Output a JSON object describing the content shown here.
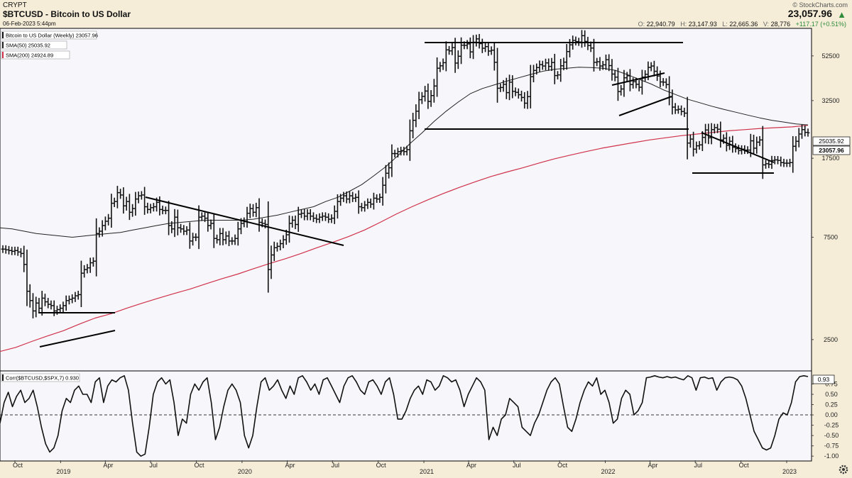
{
  "header": {
    "exchange": "CRYPT",
    "symbol_title": "$BTCUSD - Bitcoin to US Dollar",
    "date": "06-Feb-2023 5:44pm",
    "credit": "© StockCharts.com",
    "last_price": "23,057.96",
    "open_label": "O:",
    "open": "22,940.79",
    "high_label": "H:",
    "high": "23,147.93",
    "low_label": "L:",
    "low": "22,665.36",
    "volume_label": "V:",
    "volume": "28,776",
    "change": "+117.17 (+0.51%)",
    "up_color": "#2e8b3a"
  },
  "legend": {
    "price": "Bitcoin to US Dollar (Weekly) 23057.96",
    "sma50": "SMA(50) 25035.92",
    "sma200": "SMA(200) 24924.89",
    "corr": "Corr($BTCUSD,$SPX,7) 0.930"
  },
  "price_badges": {
    "sma50": "25035.92",
    "last": "23057.96"
  },
  "corr_badge": "0.93",
  "colors": {
    "sma200": "#d0314a",
    "sma50": "#222222",
    "bars": "#111111",
    "panel_bg": "#f7f7fb",
    "outer_bg": "#f5edd8"
  },
  "chart_data": [
    {
      "type": "ohlc",
      "name": "Bitcoin to US Dollar (Weekly)",
      "scale": "log",
      "y_ticks": [
        "2500",
        "7500",
        "17500",
        "32500",
        "52500"
      ],
      "y_tick_values": [
        2500,
        7500,
        17500,
        32500,
        52500
      ],
      "ylim": [
        1800,
        70000
      ],
      "x_labels": [
        "Oct",
        "2019",
        "Apr",
        "Jul",
        "Oct",
        "2020",
        "Apr",
        "Jul",
        "Oct",
        "2021",
        "Apr",
        "Jul",
        "Oct",
        "2022",
        "Apr",
        "Jul",
        "Oct",
        "2023"
      ],
      "x_label_dates": [
        "2018-10-01",
        "2019-01-01",
        "2019-04-01",
        "2019-07-01",
        "2019-10-01",
        "2020-01-01",
        "2020-04-01",
        "2020-07-01",
        "2020-10-01",
        "2021-01-01",
        "2021-04-01",
        "2021-07-01",
        "2021-10-01",
        "2022-01-01",
        "2022-04-01",
        "2022-07-01",
        "2022-10-01",
        "2023-01-01"
      ],
      "xlim": [
        "2018-09-01",
        "2023-02-20"
      ],
      "close": [
        6600,
        6550,
        6500,
        6450,
        6500,
        6400,
        6300,
        5600,
        4200,
        3800,
        3400,
        3700,
        3500,
        3900,
        3750,
        3650,
        3600,
        3400,
        3450,
        3500,
        3600,
        3800,
        3850,
        3900,
        4000,
        4050,
        5100,
        5300,
        5400,
        5700,
        5800,
        7800,
        8000,
        8500,
        8900,
        9200,
        10800,
        11000,
        12100,
        11800,
        10500,
        11000,
        9800,
        10200,
        11300,
        11700,
        11800,
        10400,
        10100,
        10300,
        10400,
        10900,
        10100,
        10000,
        10000,
        8500,
        8200,
        9300,
        8300,
        8200,
        8000,
        8100,
        7200,
        7500,
        7500,
        9300,
        9400,
        9200,
        8500,
        8700,
        7400,
        7300,
        7800,
        7300,
        7600,
        7200,
        7200,
        7400,
        8200,
        8700,
        8900,
        9700,
        10200,
        9800,
        10300,
        8800,
        8700,
        8600,
        5300,
        6200,
        6700,
        6800,
        7000,
        7300,
        7700,
        8700,
        9000,
        8600,
        9600,
        9700,
        9400,
        9700,
        9400,
        9200,
        9100,
        9300,
        9400,
        9300,
        9100,
        9200,
        9900,
        11000,
        11400,
        11700,
        11300,
        11700,
        11400,
        11500,
        10400,
        10300,
        10600,
        10900,
        10700,
        11400,
        11300,
        11500,
        13100,
        14900,
        15800,
        18400,
        18400,
        18800,
        19000,
        18800,
        19200,
        23500,
        26300,
        29000,
        32800,
        34000,
        36000,
        32200,
        34300,
        38000,
        46000,
        47200,
        48800,
        56000,
        55400,
        57400,
        48600,
        52300,
        58900,
        58800,
        59700,
        54800,
        60800,
        63000,
        59900,
        57000,
        58000,
        55300,
        55800,
        49000,
        37100,
        37400,
        38700,
        35400,
        39600,
        35900,
        35500,
        34600,
        33600,
        31600,
        33900,
        42000,
        44900,
        46300,
        47800,
        47100,
        48700,
        46900,
        48900,
        42500,
        42800,
        47200,
        49100,
        55000,
        59100,
        62000,
        61200,
        60900,
        65200,
        61300,
        58700,
        57100,
        49000,
        49300,
        47100,
        47700,
        50400,
        47300,
        43200,
        41800,
        35800,
        36800,
        41500,
        42400,
        38600,
        39800,
        38700,
        37500,
        41800,
        43100,
        46400,
        47100,
        44500,
        42300,
        39700,
        39600,
        38600,
        33800,
        30300,
        29400,
        29600,
        28900,
        28400,
        20600,
        21500,
        19300,
        20000,
        20200,
        21900,
        23700,
        21800,
        23800,
        24300,
        23900,
        21300,
        21700,
        20100,
        21000,
        19700,
        19400,
        19000,
        19300,
        19100,
        19100,
        21100,
        19500,
        20800,
        21300,
        16300,
        16500,
        16400,
        17100,
        17200,
        17100,
        16700,
        16600,
        16600,
        16700,
        19900,
        21000,
        22700,
        23800,
        23100,
        23000
      ]
    },
    {
      "type": "line",
      "name": "SMA(50)",
      "values": [
        8300,
        8200,
        8000,
        7800,
        7700,
        7600,
        7500,
        7600,
        7700,
        7800,
        7900,
        8100,
        8300,
        8500,
        8700,
        8800,
        8900,
        9000,
        9000,
        9000,
        9000,
        9100,
        9300,
        9500,
        9800,
        10100,
        10400,
        11000,
        11500,
        12300,
        13200,
        14500,
        16000,
        18000,
        20500,
        23000,
        26000,
        29000,
        32000,
        35000,
        37000,
        38500,
        40000,
        41500,
        43000,
        44500,
        45500,
        46000,
        46500,
        46300,
        46000,
        45000,
        43000,
        40800,
        38800,
        36500,
        34700,
        33000,
        31800,
        30600,
        29600,
        28700,
        27800,
        27000,
        26300,
        25800,
        25300,
        25035.92
      ]
    },
    {
      "type": "line",
      "name": "SMA(200)",
      "values": [
        2200,
        2300,
        2450,
        2600,
        2750,
        2950,
        3150,
        3300,
        3500,
        3700,
        3900,
        4100,
        4300,
        4550,
        4800,
        5050,
        5350,
        5650,
        5950,
        6300,
        6700,
        7100,
        7550,
        8100,
        8800,
        9600,
        10400,
        11200,
        12000,
        12800,
        13600,
        14400,
        15100,
        15800,
        16600,
        17400,
        18100,
        18800,
        19500,
        20100,
        20700,
        21300,
        21800,
        22300,
        22700,
        23100,
        23500,
        23800,
        24100,
        24300,
        24500,
        24924.89
      ]
    },
    {
      "type": "line",
      "name": "Corr($BTCUSD,$SPX,7)",
      "y_ticks": [
        "0.75",
        "0.50",
        "0.25",
        "0.00",
        "-0.25",
        "-0.50",
        "-0.75",
        "-1.00"
      ],
      "y_tick_values": [
        0.75,
        0.5,
        0.25,
        0,
        -0.25,
        -0.5,
        -0.75,
        -1
      ],
      "ylim": [
        -1.1,
        1.05
      ],
      "reference_line": 0,
      "values": [
        -0.2,
        0.3,
        0.55,
        0.2,
        0.45,
        0.6,
        0.3,
        0.4,
        0.6,
        0.2,
        -0.3,
        -0.7,
        -0.9,
        -0.8,
        -0.5,
        0.1,
        0.4,
        0.3,
        0.6,
        0.7,
        0.5,
        0.5,
        0.3,
        0.8,
        0.9,
        0.3,
        0.7,
        0.85,
        0.8,
        0.9,
        0.95,
        0.6,
        -0.2,
        -0.9,
        -1.0,
        -0.95,
        -0.3,
        0.5,
        0.8,
        0.9,
        0.75,
        0.85,
        0.3,
        -0.5,
        -0.1,
        -0.2,
        0.5,
        0.75,
        0.6,
        0.8,
        0.9,
        0.3,
        -0.6,
        -0.3,
        0.2,
        0.6,
        0.75,
        0.6,
        0.3,
        -0.5,
        -0.8,
        -0.5,
        0.2,
        0.8,
        0.9,
        0.6,
        0.7,
        0.85,
        0.6,
        0.4,
        0.7,
        0.5,
        0.9,
        0.95,
        0.8,
        0.6,
        0.75,
        0.5,
        0.85,
        0.9,
        0.7,
        0.5,
        0.3,
        0.7,
        0.9,
        0.95,
        0.8,
        0.6,
        0.5,
        0.8,
        0.85,
        0.7,
        0.5,
        0.8,
        0.9,
        0.5,
        -0.1,
        -0.1,
        0.1,
        0.4,
        0.6,
        0.7,
        0.5,
        0.85,
        0.8,
        0.6,
        0.7,
        0.95,
        0.9,
        0.8,
        0.85,
        0.6,
        0.2,
        0.5,
        0.7,
        0.9,
        0.8,
        0.6,
        -0.6,
        -0.3,
        -0.5,
        -0.1,
        0.0,
        0.4,
        0.3,
        0.2,
        -0.3,
        -0.4,
        -0.5,
        -0.2,
        0.0,
        0.3,
        0.6,
        0.8,
        0.9,
        0.75,
        0.2,
        -0.3,
        -0.4,
        -0.1,
        0.3,
        0.6,
        0.8,
        0.7,
        0.9,
        0.5,
        0.6,
        0.3,
        -0.2,
        -0.1,
        0.4,
        0.6,
        0.5,
        0.0,
        0.1,
        0.3,
        0.9,
        0.92,
        0.95,
        0.92,
        0.9,
        0.93,
        0.9,
        0.92,
        0.88,
        0.85,
        0.95,
        0.9,
        0.6,
        0.9,
        0.92,
        0.88,
        0.9,
        0.6,
        0.8,
        0.9,
        0.92,
        0.9,
        0.85,
        0.7,
        0.4,
        0.0,
        -0.4,
        -0.6,
        -0.8,
        -0.85,
        -0.8,
        -0.5,
        -0.1,
        0.05,
        0.0,
        0.3,
        0.8,
        0.93,
        0.95,
        0.93
      ]
    }
  ]
}
